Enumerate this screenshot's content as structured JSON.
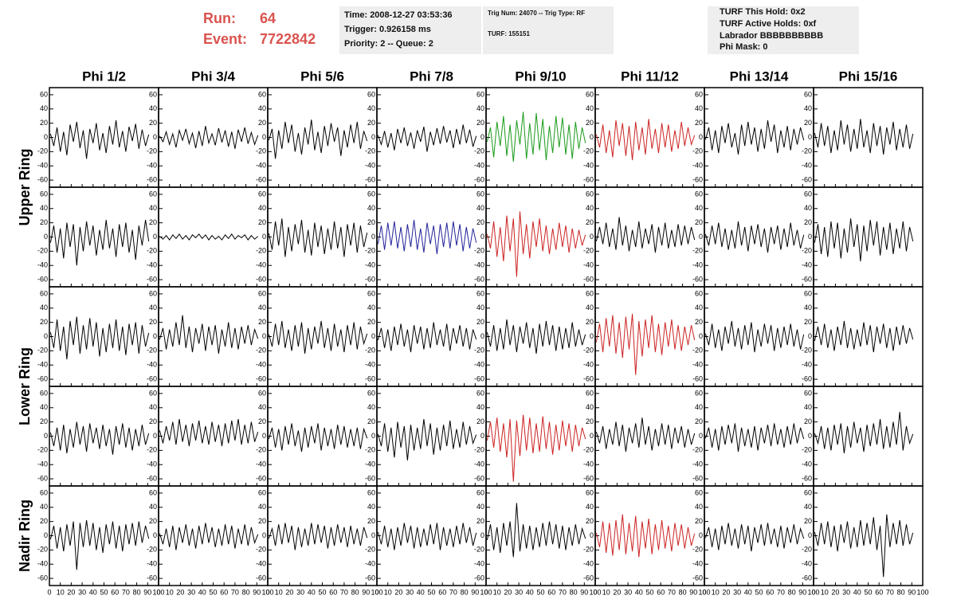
{
  "header": {
    "run_label": "Run:",
    "run": "64",
    "event_label": "Event:",
    "event": "7722842"
  },
  "info_boxes": [
    [
      "Time: 2008-12-27 03:53:36",
      "Trigger: 0.926158 ms",
      "Priority: 2 -- Queue: 2"
    ],
    [
      "Trig Num: 24070 -- Trig Type: RF",
      "TURF: 155151"
    ],
    [
      "TURF This Hold: 0x2",
      "TURF Active Holds: 0xf",
      "Labrador BBBBBBBBBB",
      "Phi Mask: 0"
    ]
  ],
  "columns": [
    "Phi 1/2",
    "Phi 3/4",
    "Phi 5/6",
    "Phi 7/8",
    "Phi 9/10",
    "Phi 11/12",
    "Phi 13/14",
    "Phi 15/16"
  ],
  "rows": [
    "Upper Ring",
    "Lower Ring",
    "Nadir Ring"
  ],
  "xlim": [
    0,
    100
  ],
  "xticks": [
    0,
    10,
    20,
    30,
    40,
    50,
    60,
    70,
    80,
    90,
    100
  ],
  "ylim": [
    -70,
    70
  ],
  "yticks": [
    -60,
    -40,
    -20,
    0,
    20,
    40,
    60
  ],
  "x": [
    1,
    4,
    7,
    10,
    13,
    16,
    19,
    22,
    25,
    28,
    31,
    34,
    37,
    40,
    43,
    46,
    49,
    52,
    55,
    58,
    61,
    64,
    67,
    70,
    73,
    76,
    79,
    82,
    85,
    88,
    91
  ],
  "panels": [
    {
      "color": "#000000",
      "values": [
        5,
        -12,
        14,
        -20,
        8,
        -25,
        18,
        -6,
        22,
        -15,
        10,
        -30,
        12,
        -8,
        20,
        -18,
        6,
        -22,
        16,
        -10,
        24,
        -14,
        9,
        -20,
        15,
        -5,
        19,
        -16,
        11,
        -12,
        4
      ]
    },
    {
      "color": "#000000",
      "values": [
        2,
        -6,
        8,
        -10,
        5,
        -14,
        10,
        -4,
        12,
        -9,
        6,
        -15,
        9,
        -12,
        16,
        -8,
        5,
        -11,
        13,
        -7,
        10,
        -13,
        8,
        -16,
        11,
        -6,
        14,
        -9,
        7,
        -10,
        3
      ]
    },
    {
      "color": "#000000",
      "values": [
        -4,
        12,
        -30,
        10,
        -16,
        22,
        -8,
        18,
        -20,
        6,
        -24,
        14,
        -10,
        25,
        -18,
        8,
        -22,
        16,
        -12,
        20,
        -6,
        14,
        -26,
        10,
        -14,
        18,
        -8,
        22,
        -16,
        9,
        -5
      ]
    },
    {
      "color": "#000000",
      "values": [
        3,
        -10,
        9,
        -14,
        6,
        -18,
        12,
        -8,
        14,
        -12,
        7,
        -16,
        10,
        -6,
        15,
        -20,
        8,
        -11,
        13,
        -9,
        16,
        -7,
        10,
        -15,
        12,
        -10,
        18,
        -8,
        11,
        -13,
        2
      ]
    },
    {
      "color": "#1a9a1a",
      "values": [
        -6,
        14,
        -28,
        22,
        -12,
        30,
        -26,
        18,
        -34,
        24,
        -10,
        36,
        -30,
        20,
        -24,
        34,
        -18,
        26,
        -32,
        16,
        -22,
        30,
        -14,
        28,
        -24,
        18,
        -30,
        22,
        -16,
        14,
        -8
      ]
    },
    {
      "color": "#cc2222",
      "values": [
        4,
        -14,
        18,
        -22,
        10,
        -28,
        24,
        -12,
        20,
        -26,
        16,
        -32,
        22,
        -18,
        14,
        -24,
        26,
        -16,
        12,
        -22,
        20,
        -14,
        18,
        -20,
        10,
        -16,
        22,
        -12,
        14,
        -10,
        3
      ]
    },
    {
      "color": "#000000",
      "values": [
        -3,
        14,
        -18,
        10,
        -22,
        16,
        -8,
        20,
        -14,
        6,
        -24,
        18,
        -12,
        22,
        -10,
        14,
        -20,
        12,
        -16,
        24,
        -6,
        18,
        -22,
        10,
        -14,
        16,
        -18,
        12,
        -10,
        14,
        -4
      ]
    },
    {
      "color": "#000000",
      "values": [
        6,
        -14,
        20,
        -12,
        16,
        -22,
        10,
        -18,
        24,
        -10,
        18,
        -20,
        12,
        -16,
        26,
        -14,
        10,
        -22,
        20,
        -12,
        16,
        -24,
        14,
        -10,
        22,
        -18,
        12,
        -14,
        18,
        -16,
        5
      ]
    },
    {
      "color": "#000000",
      "values": [
        -8,
        16,
        -22,
        12,
        -30,
        20,
        -14,
        18,
        -40,
        14,
        -20,
        22,
        -12,
        16,
        -26,
        10,
        -18,
        24,
        -16,
        12,
        -28,
        18,
        -14,
        20,
        -22,
        10,
        -32,
        16,
        -12,
        24,
        -6
      ]
    },
    {
      "color": "#000000",
      "values": [
        1,
        -3,
        2,
        -4,
        3,
        -2,
        4,
        -3,
        2,
        -4,
        3,
        -1,
        4,
        -2,
        3,
        -4,
        2,
        -3,
        1,
        -4,
        3,
        -2,
        4,
        -3,
        2,
        -1,
        3,
        -4,
        2,
        -3,
        1
      ]
    },
    {
      "color": "#000000",
      "values": [
        5,
        -18,
        22,
        -12,
        26,
        -28,
        14,
        -20,
        18,
        -10,
        24,
        -22,
        10,
        -26,
        20,
        -14,
        16,
        -24,
        12,
        -18,
        22,
        -16,
        14,
        -28,
        18,
        -12,
        20,
        -22,
        16,
        -14,
        6
      ]
    },
    {
      "color": "#22229a",
      "values": [
        -10,
        16,
        -18,
        20,
        -12,
        22,
        -16,
        14,
        -20,
        18,
        -14,
        24,
        -18,
        12,
        -22,
        20,
        -10,
        16,
        -24,
        18,
        -14,
        20,
        -16,
        22,
        -12,
        18,
        -20,
        14,
        -16,
        12,
        -8
      ]
    },
    {
      "color": "#cc2222",
      "values": [
        4,
        -16,
        22,
        -28,
        14,
        -34,
        30,
        -20,
        26,
        -56,
        36,
        -24,
        18,
        -30,
        22,
        -14,
        26,
        -20,
        16,
        -24,
        12,
        -18,
        20,
        -14,
        16,
        -22,
        12,
        -16,
        10,
        -12,
        3
      ]
    },
    {
      "color": "#000000",
      "values": [
        -6,
        14,
        -10,
        20,
        -14,
        12,
        -18,
        28,
        -12,
        16,
        -20,
        10,
        -14,
        22,
        -16,
        12,
        -10,
        18,
        -22,
        14,
        -12,
        20,
        -16,
        10,
        -14,
        18,
        -12,
        16,
        -10,
        14,
        -4
      ]
    },
    {
      "color": "#000000",
      "values": [
        4,
        -12,
        16,
        -10,
        20,
        -14,
        12,
        -18,
        10,
        -16,
        22,
        -12,
        14,
        -20,
        16,
        -10,
        18,
        -14,
        12,
        -22,
        14,
        -10,
        16,
        -18,
        12,
        -14,
        20,
        -12,
        10,
        -16,
        3
      ]
    },
    {
      "color": "#000000",
      "values": [
        -8,
        18,
        -24,
        14,
        -28,
        22,
        -16,
        20,
        -30,
        12,
        -22,
        26,
        -14,
        18,
        -34,
        16,
        -20,
        24,
        -12,
        22,
        -26,
        14,
        -18,
        20,
        -24,
        12,
        -16,
        22,
        -20,
        14,
        -6
      ]
    },
    {
      "color": "#000000",
      "values": [
        6,
        -16,
        24,
        -20,
        14,
        -32,
        22,
        -12,
        28,
        -24,
        16,
        -18,
        26,
        -14,
        20,
        -28,
        12,
        -22,
        18,
        -16,
        24,
        -20,
        14,
        -26,
        18,
        -12,
        20,
        -24,
        16,
        -14,
        5
      ]
    },
    {
      "color": "#000000",
      "values": [
        -4,
        12,
        -18,
        10,
        -14,
        20,
        -12,
        30,
        -16,
        14,
        -22,
        12,
        -10,
        18,
        -20,
        14,
        -12,
        16,
        -24,
        10,
        -14,
        20,
        -16,
        12,
        -18,
        14,
        -10,
        16,
        -12,
        10,
        -3
      ]
    },
    {
      "color": "#000000",
      "values": [
        3,
        -14,
        18,
        -12,
        22,
        -16,
        10,
        -20,
        16,
        -14,
        20,
        -24,
        12,
        -18,
        14,
        -10,
        22,
        -16,
        12,
        -20,
        18,
        -14,
        10,
        -22,
        16,
        -12,
        20,
        -18,
        14,
        -10,
        4
      ]
    },
    {
      "color": "#000000",
      "values": [
        -5,
        12,
        -16,
        10,
        -20,
        14,
        -12,
        18,
        -14,
        10,
        -22,
        16,
        -10,
        14,
        -18,
        12,
        -16,
        20,
        -12,
        10,
        -14,
        18,
        -20,
        12,
        -10,
        16,
        -14,
        12,
        -18,
        10,
        -4
      ]
    },
    {
      "color": "#000000",
      "values": [
        6,
        -14,
        16,
        -20,
        12,
        -18,
        24,
        -12,
        16,
        -22,
        14,
        -10,
        20,
        -16,
        12,
        -24,
        18,
        -14,
        22,
        -12,
        16,
        -20,
        14,
        -18,
        12,
        -16,
        20,
        -14,
        10,
        -12,
        3
      ]
    },
    {
      "color": "#cc2222",
      "values": [
        -8,
        18,
        -22,
        26,
        -14,
        30,
        -24,
        20,
        -30,
        28,
        -18,
        32,
        -54,
        22,
        -28,
        24,
        -16,
        30,
        -22,
        18,
        -26,
        20,
        -14,
        24,
        -18,
        16,
        -20,
        14,
        -12,
        16,
        -5
      ]
    },
    {
      "color": "#000000",
      "values": [
        4,
        -12,
        18,
        -16,
        10,
        -20,
        14,
        -10,
        22,
        -14,
        12,
        -18,
        16,
        -12,
        20,
        -22,
        10,
        -14,
        18,
        -10,
        16,
        -20,
        12,
        -16,
        14,
        -12,
        18,
        -14,
        10,
        -18,
        3
      ]
    },
    {
      "color": "#000000",
      "values": [
        -6,
        14,
        -12,
        18,
        -16,
        10,
        -20,
        14,
        -12,
        22,
        -16,
        12,
        -18,
        10,
        -14,
        20,
        -12,
        16,
        -22,
        14,
        -10,
        18,
        -16,
        12,
        -20,
        14,
        -12,
        16,
        -10,
        12,
        -4
      ]
    },
    {
      "color": "#000000",
      "values": [
        5,
        -14,
        12,
        -20,
        16,
        -24,
        10,
        -16,
        20,
        -12,
        14,
        -22,
        18,
        -10,
        12,
        -18,
        16,
        -14,
        10,
        -26,
        14,
        -12,
        18,
        -16,
        12,
        -20,
        10,
        -14,
        16,
        -12,
        4
      ]
    },
    {
      "color": "#000000",
      "values": [
        8,
        -10,
        14,
        -6,
        20,
        -12,
        24,
        -8,
        16,
        -14,
        18,
        -6,
        22,
        -10,
        14,
        -12,
        20,
        -8,
        16,
        -14,
        18,
        -10,
        22,
        -6,
        24,
        -12,
        16,
        -10,
        20,
        -8,
        6
      ]
    },
    {
      "color": "#000000",
      "values": [
        -4,
        12,
        -16,
        10,
        -20,
        14,
        -12,
        18,
        -14,
        8,
        -22,
        12,
        -16,
        14,
        -10,
        18,
        -20,
        12,
        -14,
        10,
        -18,
        16,
        -12,
        14,
        -16,
        10,
        -14,
        12,
        -18,
        10,
        -3
      ]
    },
    {
      "color": "#000000",
      "values": [
        3,
        -14,
        18,
        -22,
        12,
        -30,
        20,
        -16,
        14,
        -34,
        16,
        -20,
        12,
        -18,
        24,
        -14,
        18,
        -26,
        12,
        -20,
        16,
        -14,
        22,
        -18,
        10,
        -16,
        20,
        -12,
        14,
        -10,
        2
      ]
    },
    {
      "color": "#cc2222",
      "values": [
        -6,
        20,
        -16,
        26,
        -22,
        18,
        -30,
        24,
        -64,
        22,
        -28,
        30,
        -20,
        26,
        -24,
        18,
        -22,
        28,
        -18,
        20,
        -26,
        16,
        -20,
        22,
        -14,
        18,
        -22,
        16,
        -14,
        12,
        -4
      ]
    },
    {
      "color": "#000000",
      "values": [
        6,
        -10,
        14,
        -18,
        10,
        -12,
        20,
        -14,
        16,
        -22,
        12,
        -10,
        18,
        -16,
        26,
        -12,
        14,
        -20,
        10,
        -14,
        18,
        -12,
        16,
        -18,
        12,
        -10,
        14,
        -16,
        10,
        -12,
        4
      ]
    },
    {
      "color": "#000000",
      "values": [
        -3,
        12,
        -16,
        10,
        -20,
        14,
        -12,
        16,
        -10,
        18,
        -22,
        12,
        -14,
        10,
        -16,
        14,
        -20,
        12,
        -10,
        16,
        -14,
        18,
        -12,
        10,
        -16,
        14,
        -12,
        18,
        -10,
        12,
        -4
      ]
    },
    {
      "color": "#000000",
      "values": [
        4,
        -10,
        14,
        -18,
        12,
        -20,
        16,
        -12,
        18,
        -24,
        14,
        -16,
        20,
        -10,
        12,
        -22,
        16,
        -14,
        18,
        -12,
        24,
        -18,
        14,
        -16,
        20,
        -12,
        34,
        -20,
        14,
        -10,
        3
      ]
    },
    {
      "color": "#000000",
      "values": [
        -5,
        14,
        -18,
        12,
        -22,
        16,
        -14,
        20,
        -48,
        18,
        -16,
        22,
        -14,
        18,
        -20,
        12,
        -24,
        16,
        -12,
        20,
        -18,
        14,
        -22,
        16,
        -12,
        18,
        -14,
        20,
        -10,
        14,
        -4
      ]
    },
    {
      "color": "#000000",
      "values": [
        3,
        -12,
        10,
        -16,
        14,
        -20,
        12,
        -10,
        16,
        -14,
        10,
        -18,
        14,
        -12,
        18,
        -10,
        12,
        -16,
        10,
        -14,
        16,
        -12,
        14,
        -18,
        10,
        -12,
        16,
        -14,
        12,
        -10,
        2
      ]
    },
    {
      "color": "#000000",
      "values": [
        -4,
        10,
        -14,
        16,
        -12,
        18,
        -10,
        14,
        -20,
        12,
        -16,
        10,
        -14,
        18,
        -12,
        16,
        -10,
        14,
        -18,
        12,
        -14,
        16,
        -10,
        12,
        -16,
        14,
        -12,
        10,
        -14,
        12,
        -3
      ]
    },
    {
      "color": "#000000",
      "values": [
        5,
        -12,
        14,
        -16,
        10,
        -20,
        12,
        -14,
        18,
        -10,
        14,
        -18,
        12,
        -16,
        10,
        -14,
        16,
        -12,
        18,
        -20,
        12,
        -14,
        10,
        -16,
        14,
        -12,
        18,
        -10,
        12,
        -14,
        4
      ]
    },
    {
      "color": "#000000",
      "values": [
        -6,
        16,
        -20,
        12,
        -24,
        18,
        -14,
        20,
        -30,
        46,
        -22,
        16,
        -18,
        14,
        -20,
        12,
        -16,
        18,
        -14,
        20,
        -12,
        16,
        -18,
        14,
        -20,
        12,
        -14,
        16,
        -12,
        10,
        -4
      ]
    },
    {
      "color": "#cc2222",
      "values": [
        4,
        -16,
        20,
        -24,
        18,
        -28,
        22,
        -20,
        30,
        -26,
        18,
        -22,
        28,
        -30,
        20,
        -18,
        24,
        -26,
        16,
        -20,
        22,
        -18,
        14,
        -22,
        18,
        -14,
        16,
        -18,
        12,
        -14,
        3
      ]
    },
    {
      "color": "#000000",
      "values": [
        -3,
        12,
        -16,
        10,
        -20,
        14,
        -12,
        18,
        -14,
        10,
        -18,
        16,
        -12,
        14,
        -22,
        12,
        -10,
        16,
        -14,
        18,
        -12,
        10,
        -16,
        14,
        -18,
        12,
        -10,
        16,
        -12,
        10,
        -4
      ]
    },
    {
      "color": "#000000",
      "values": [
        5,
        -14,
        18,
        -12,
        20,
        -16,
        14,
        -22,
        16,
        -10,
        20,
        -18,
        12,
        -16,
        22,
        -14,
        18,
        -12,
        26,
        -20,
        14,
        -58,
        30,
        -16,
        18,
        -12,
        22,
        -14,
        16,
        -12,
        4
      ]
    }
  ]
}
